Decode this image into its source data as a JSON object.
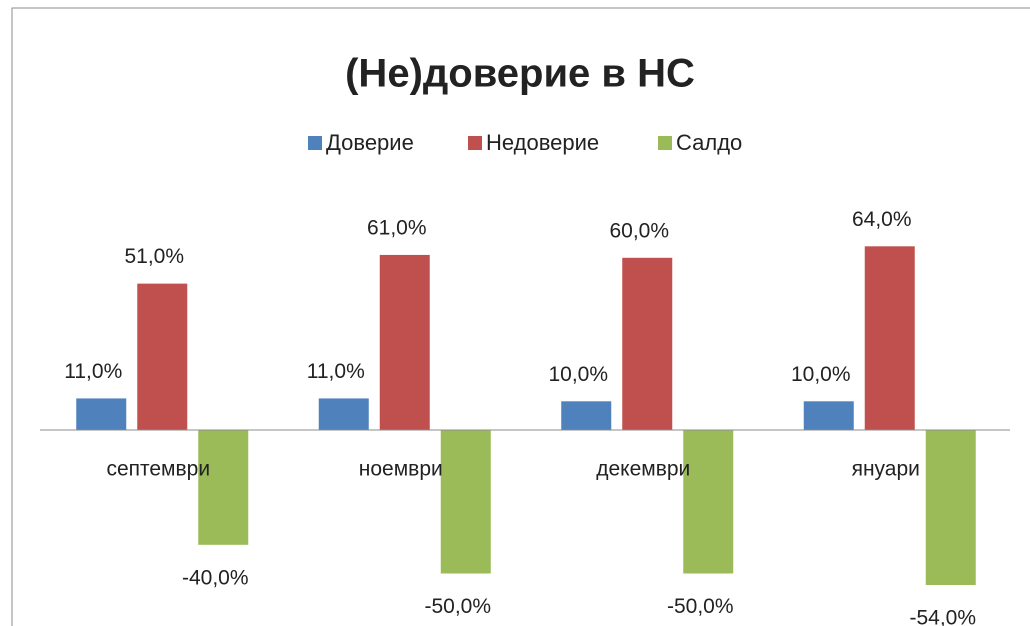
{
  "chart_data": {
    "type": "bar",
    "title": "(Не)доверие в НС",
    "categories": [
      "септември",
      "ноември",
      "декември",
      "януари"
    ],
    "series": [
      {
        "name": "Доверие",
        "color": "#4f81bd",
        "values": [
          11,
          11,
          10,
          10
        ],
        "value_labels": [
          "11,0%",
          "11,0%",
          "10,0%",
          "10,0%"
        ]
      },
      {
        "name": "Недоверие",
        "color": "#c0504d",
        "values": [
          51,
          61,
          60,
          64
        ],
        "value_labels": [
          "51,0%",
          "61,0%",
          "60,0%",
          "64,0%"
        ]
      },
      {
        "name": "Салдо",
        "color": "#9bbb59",
        "values": [
          -40,
          -50,
          -50,
          -54
        ],
        "value_labels": [
          "-40,0%",
          "-50,0%",
          "-50,0%",
          "-54,0%"
        ]
      }
    ],
    "legend": "top"
  }
}
